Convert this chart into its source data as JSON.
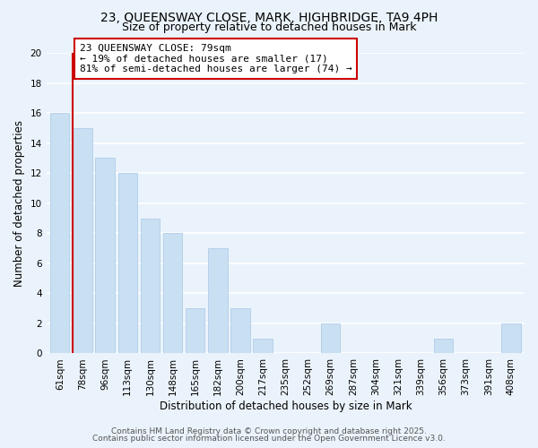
{
  "title1": "23, QUEENSWAY CLOSE, MARK, HIGHBRIDGE, TA9 4PH",
  "title2": "Size of property relative to detached houses in Mark",
  "xlabel": "Distribution of detached houses by size in Mark",
  "ylabel": "Number of detached properties",
  "bar_labels": [
    "61sqm",
    "78sqm",
    "96sqm",
    "113sqm",
    "130sqm",
    "148sqm",
    "165sqm",
    "182sqm",
    "200sqm",
    "217sqm",
    "235sqm",
    "252sqm",
    "269sqm",
    "287sqm",
    "304sqm",
    "321sqm",
    "339sqm",
    "356sqm",
    "373sqm",
    "391sqm",
    "408sqm"
  ],
  "bar_values": [
    16,
    15,
    13,
    12,
    9,
    8,
    3,
    7,
    3,
    1,
    0,
    0,
    2,
    0,
    0,
    0,
    0,
    1,
    0,
    0,
    2
  ],
  "bar_color": "#c9dff2",
  "bar_edge_color": "#a8c8e8",
  "vline_color": "#cc0000",
  "annotation_text": "23 QUEENSWAY CLOSE: 79sqm\n← 19% of detached houses are smaller (17)\n81% of semi-detached houses are larger (74) →",
  "annotation_bbox_facecolor": "white",
  "annotation_bbox_edgecolor": "#cc0000",
  "ylim": [
    0,
    20
  ],
  "yticks": [
    0,
    2,
    4,
    6,
    8,
    10,
    12,
    14,
    16,
    18,
    20
  ],
  "footer1": "Contains HM Land Registry data © Crown copyright and database right 2025.",
  "footer2": "Contains public sector information licensed under the Open Government Licence v3.0.",
  "bg_color": "#eaf3fb",
  "grid_color": "white",
  "title_fontsize": 10,
  "subtitle_fontsize": 9,
  "axis_label_fontsize": 8.5,
  "tick_fontsize": 7.5,
  "annotation_fontsize": 8,
  "footer_fontsize": 6.5
}
